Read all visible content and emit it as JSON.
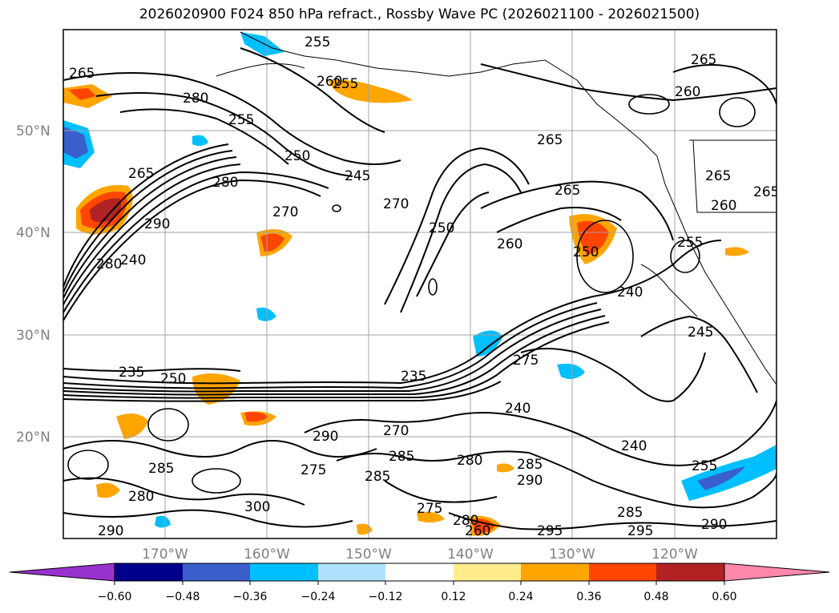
{
  "title": "2026020900 F024 850 hPa refract., Rossby Wave PC (2026021100 - 2026021500)",
  "lat_labels": [
    "50°N",
    "40°N",
    "30°N",
    "20°N"
  ],
  "lon_labels": [
    "170°W",
    "160°W",
    "150°W",
    "140°W",
    "130°W",
    "120°W"
  ],
  "colorbar": {
    "ticks": [
      "−0.60",
      "−0.48",
      "−0.36",
      "−0.24",
      "−0.12",
      "0.12",
      "0.24",
      "0.36",
      "0.48",
      "0.60"
    ],
    "colors": {
      "under": "#9932cc",
      "c1": "#00008b",
      "c2": "#3a5fcd",
      "c3": "#00bfff",
      "c4": "#b0e2ff",
      "c5": "#ffffff",
      "c6": "#ffec8b",
      "c7": "#ffa500",
      "c8": "#ff4500",
      "c9": "#b22222",
      "over": "#ff88aa"
    }
  },
  "contour_labels": [
    "265",
    "255",
    "260",
    "255",
    "250",
    "245",
    "280",
    "270",
    "265",
    "255",
    "290",
    "280",
    "270",
    "265",
    "260",
    "280",
    "275",
    "250",
    "240",
    "235",
    "275",
    "290",
    "270",
    "285",
    "280",
    "290",
    "285",
    "255",
    "300",
    "295",
    "290",
    "275",
    "260",
    "240",
    "245",
    "240",
    "265",
    "255",
    "285",
    "280",
    "285",
    "290",
    "235",
    "250",
    "265",
    "260",
    "280",
    "285",
    "265",
    "260",
    "250",
    "265",
    "240",
    "295"
  ]
}
